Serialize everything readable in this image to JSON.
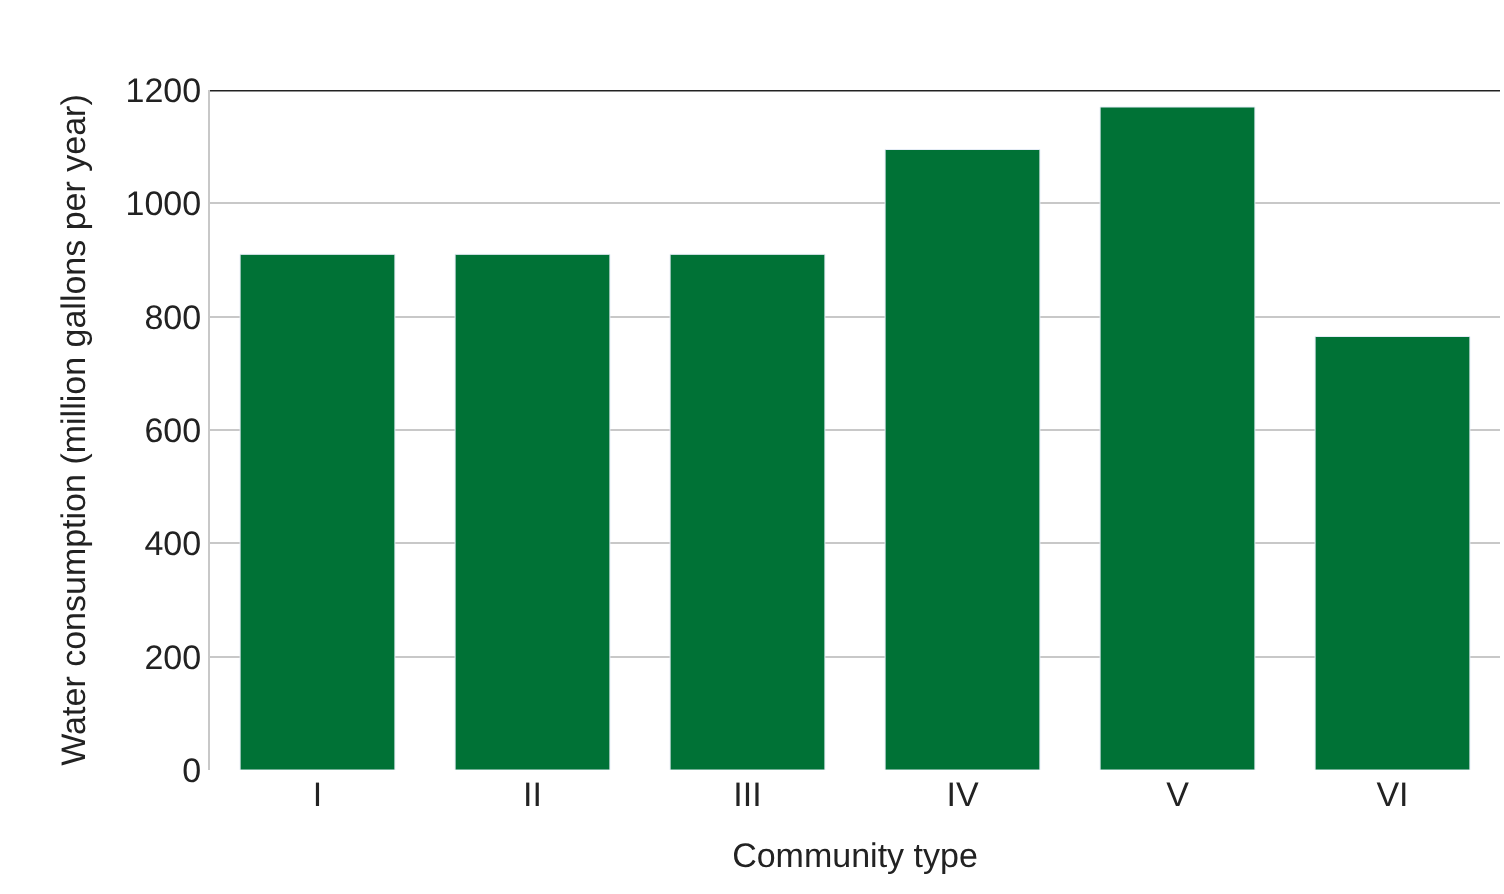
{
  "chart_data": {
    "type": "bar",
    "xlabel": "Community type",
    "ylabel": "Water consumption (million gallons per year)",
    "categories": [
      "I",
      "II",
      "III",
      "IV",
      "V",
      "VI"
    ],
    "values": [
      910,
      910,
      910,
      1095,
      1170,
      765
    ],
    "color": "#007236",
    "ylim": [
      0,
      1200
    ],
    "yticks": [
      0,
      200,
      400,
      600,
      800,
      1000,
      1200
    ],
    "grid": "y"
  }
}
